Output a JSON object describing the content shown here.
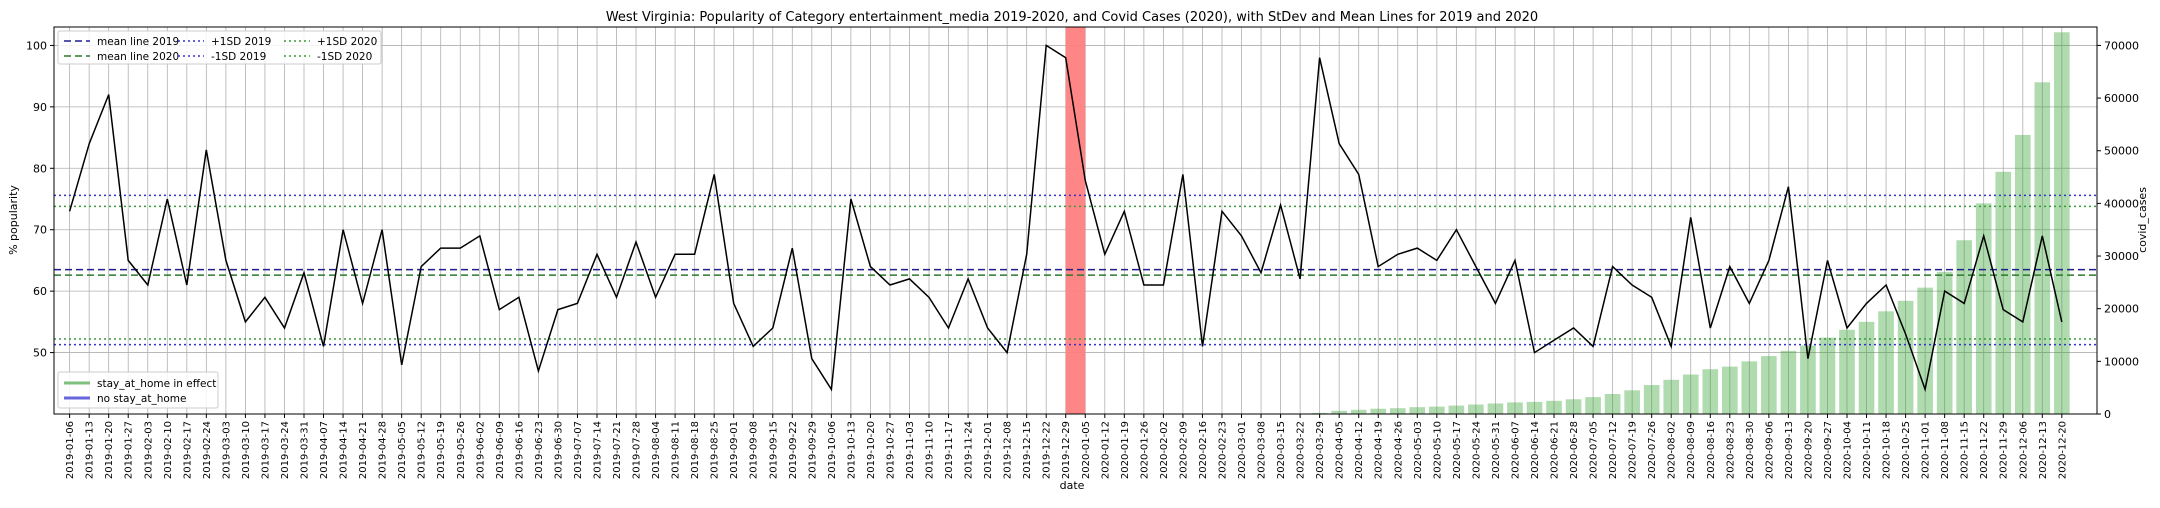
{
  "chart_data": {
    "type": "line",
    "title": "West Virginia: Popularity of Category entertainment_media 2019-2020, and Covid Cases (2020), with StDev and Mean Lines for 2019 and 2020",
    "xlabel": "date",
    "ylabel": "% popularity",
    "y2label": "covid_cases",
    "ylim": [
      40,
      103
    ],
    "y2lim": [
      0,
      73500
    ],
    "yticks": [
      50,
      60,
      70,
      80,
      90,
      100
    ],
    "y2ticks": [
      0,
      10000,
      20000,
      30000,
      40000,
      50000,
      60000,
      70000
    ],
    "grid": true,
    "legend_placement": [
      "upper-left",
      "lower-left"
    ],
    "dates": [
      "2019-01-06",
      "2019-01-13",
      "2019-01-20",
      "2019-01-27",
      "2019-02-03",
      "2019-02-10",
      "2019-02-17",
      "2019-02-24",
      "2019-03-03",
      "2019-03-10",
      "2019-03-17",
      "2019-03-24",
      "2019-03-31",
      "2019-04-07",
      "2019-04-14",
      "2019-04-21",
      "2019-04-28",
      "2019-05-05",
      "2019-05-12",
      "2019-05-19",
      "2019-05-26",
      "2019-06-02",
      "2019-06-09",
      "2019-06-16",
      "2019-06-23",
      "2019-06-30",
      "2019-07-07",
      "2019-07-14",
      "2019-07-21",
      "2019-07-28",
      "2019-08-04",
      "2019-08-11",
      "2019-08-18",
      "2019-08-25",
      "2019-09-01",
      "2019-09-08",
      "2019-09-15",
      "2019-09-22",
      "2019-09-29",
      "2019-10-06",
      "2019-10-13",
      "2019-10-20",
      "2019-10-27",
      "2019-11-03",
      "2019-11-10",
      "2019-11-17",
      "2019-11-24",
      "2019-12-01",
      "2019-12-08",
      "2019-12-15",
      "2019-12-22",
      "2019-12-29",
      "2020-01-05",
      "2020-01-12",
      "2020-01-19",
      "2020-01-26",
      "2020-02-02",
      "2020-02-09",
      "2020-02-16",
      "2020-02-23",
      "2020-03-01",
      "2020-03-08",
      "2020-03-15",
      "2020-03-22",
      "2020-03-29",
      "2020-04-05",
      "2020-04-12",
      "2020-04-19",
      "2020-04-26",
      "2020-05-03",
      "2020-05-10",
      "2020-05-17",
      "2020-05-24",
      "2020-05-31",
      "2020-06-07",
      "2020-06-14",
      "2020-06-21",
      "2020-06-28",
      "2020-07-05",
      "2020-07-12",
      "2020-07-19",
      "2020-07-26",
      "2020-08-02",
      "2020-08-09",
      "2020-08-16",
      "2020-08-23",
      "2020-08-30",
      "2020-09-06",
      "2020-09-13",
      "2020-09-20",
      "2020-09-27",
      "2020-10-04",
      "2020-10-11",
      "2020-10-18",
      "2020-10-25",
      "2020-11-01",
      "2020-11-08",
      "2020-11-15",
      "2020-11-22",
      "2020-11-29",
      "2020-12-06",
      "2020-12-13",
      "2020-12-20"
    ],
    "series": [
      {
        "name": "% popularity",
        "color": "#000000",
        "values": [
          73,
          84,
          92,
          65,
          61,
          75,
          61,
          83,
          65,
          55,
          59,
          54,
          63,
          51,
          70,
          58,
          70,
          48,
          64,
          67,
          67,
          69,
          57,
          59,
          47,
          57,
          58,
          66,
          59,
          68,
          59,
          66,
          66,
          79,
          58,
          51,
          54,
          67,
          49,
          44,
          75,
          64,
          61,
          62,
          59,
          54,
          62,
          54,
          50,
          66,
          100,
          98,
          78,
          66,
          73,
          61,
          61,
          79,
          51,
          73,
          69,
          63,
          74,
          62,
          98,
          84,
          79,
          64,
          66,
          67,
          65,
          70,
          64,
          58,
          65,
          50,
          52,
          54,
          51,
          64,
          61,
          59,
          51,
          72,
          54,
          64,
          58,
          65,
          77,
          49,
          65,
          54,
          58,
          61,
          53,
          44,
          60,
          58,
          69,
          57,
          55,
          69,
          55
        ]
      },
      {
        "name": "covid_cases",
        "color": "#2ca02c",
        "values": [
          0,
          0,
          0,
          0,
          0,
          0,
          0,
          0,
          0,
          0,
          0,
          0,
          0,
          0,
          0,
          0,
          0,
          0,
          0,
          0,
          0,
          0,
          0,
          0,
          0,
          0,
          0,
          0,
          0,
          0,
          0,
          0,
          0,
          0,
          0,
          0,
          0,
          0,
          0,
          0,
          0,
          0,
          0,
          0,
          0,
          0,
          0,
          0,
          0,
          0,
          0,
          0,
          0,
          0,
          0,
          0,
          0,
          0,
          0,
          0,
          0,
          0,
          0,
          0,
          200,
          600,
          800,
          1000,
          1100,
          1300,
          1400,
          1600,
          1800,
          2000,
          2200,
          2300,
          2500,
          2800,
          3200,
          3800,
          4500,
          5500,
          6500,
          7500,
          8500,
          9000,
          10000,
          11000,
          12000,
          13000,
          14500,
          16000,
          17500,
          19500,
          21500,
          24000,
          27000,
          33000,
          40000,
          46000,
          53000,
          63000,
          72500
        ]
      }
    ],
    "mean_std_lines": [
      {
        "name": "mean line 2019",
        "value": 63.5,
        "color": "#1f1f8f",
        "style": "dashed"
      },
      {
        "name": "mean line 2020",
        "value": 62.6,
        "color": "#2a7a2a",
        "style": "dashed"
      },
      {
        "name": "+1SD 2019",
        "value": 75.6,
        "color": "#3333cc",
        "style": "dotted"
      },
      {
        "name": "-1SD 2019",
        "value": 51.3,
        "color": "#3333cc",
        "style": "dotted"
      },
      {
        "name": "+1SD 2020",
        "value": 73.8,
        "color": "#3a9a3a",
        "style": "dotted"
      },
      {
        "name": "-1SD 2020",
        "value": 52.2,
        "color": "#3a9a3a",
        "style": "dotted"
      }
    ],
    "highlight_span": {
      "from": "2019-12-29",
      "to": "2020-01-05",
      "color": "#ff7f7f"
    },
    "legend_top": [
      "mean line 2019",
      "mean line 2020",
      "+1SD 2019",
      "-1SD 2019",
      "+1SD 2020",
      "-1SD 2020"
    ],
    "legend_bottom": [
      {
        "label": "stay_at_home in effect",
        "color": "#7fbf7f"
      },
      {
        "label": "no stay_at_home",
        "color": "#6666dd"
      }
    ]
  }
}
